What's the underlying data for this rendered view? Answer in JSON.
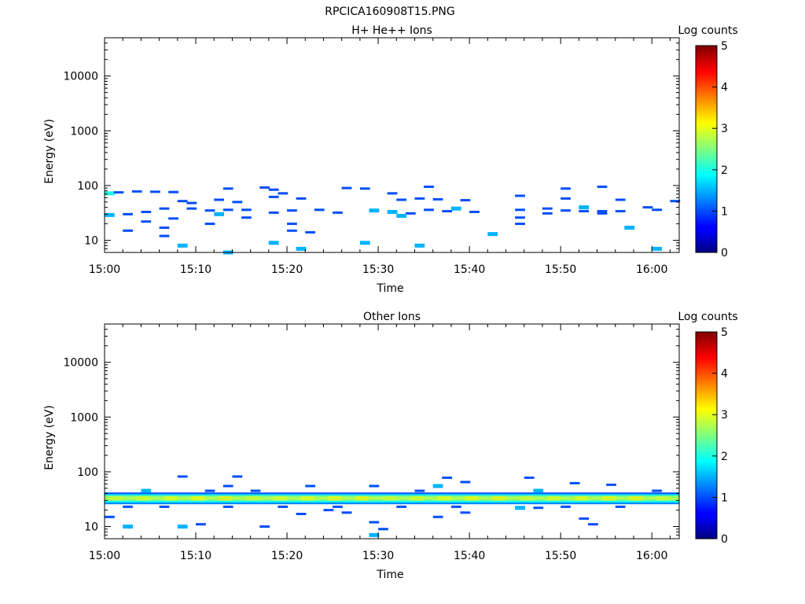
{
  "figure_title": "RPCICA160908T15.PNG",
  "chart_data": [
    {
      "type": "heatmap",
      "title": "H+ He++ Ions",
      "xlabel": "Time",
      "ylabel": "Energy (eV)",
      "x_range": [
        "15:00",
        "16:03"
      ],
      "x_ticks": [
        "15:00",
        "15:10",
        "15:20",
        "15:30",
        "15:40",
        "15:50",
        "16:00"
      ],
      "y_scale": "log",
      "y_range": [
        6,
        50000
      ],
      "y_ticks": [
        "10",
        "100",
        "1000",
        "10000"
      ],
      "colorbar": {
        "label": "Log counts",
        "range": [
          0,
          5
        ],
        "ticks": [
          "0",
          "1",
          "2",
          "3",
          "4",
          "5"
        ],
        "colormap": "jet"
      },
      "cells": [
        [
          "15:00",
          72,
          2
        ],
        [
          "15:01",
          75,
          1
        ],
        [
          "15:03",
          78,
          1
        ],
        [
          "15:05",
          77,
          1
        ],
        [
          "15:07",
          76,
          1
        ],
        [
          "15:13",
          88,
          1
        ],
        [
          "15:17",
          92,
          1
        ],
        [
          "15:18",
          84,
          1
        ],
        [
          "15:19",
          72,
          1
        ],
        [
          "15:26",
          90,
          1
        ],
        [
          "15:28",
          88,
          1
        ],
        [
          "15:31",
          72,
          1
        ],
        [
          "15:35",
          95,
          1
        ],
        [
          "15:45",
          65,
          1
        ],
        [
          "15:50",
          88,
          1
        ],
        [
          "15:54",
          95,
          1
        ],
        [
          "15:08",
          52,
          1
        ],
        [
          "15:09",
          48,
          1
        ],
        [
          "15:12",
          55,
          1
        ],
        [
          "15:14",
          50,
          1
        ],
        [
          "15:18",
          62,
          1
        ],
        [
          "15:21",
          58,
          1
        ],
        [
          "15:32",
          55,
          1
        ],
        [
          "15:34",
          58,
          1
        ],
        [
          "15:36",
          56,
          1
        ],
        [
          "15:39",
          54,
          1
        ],
        [
          "15:50",
          58,
          1
        ],
        [
          "15:56",
          55,
          1
        ],
        [
          "15:00",
          29,
          1.5
        ],
        [
          "15:02",
          30,
          1
        ],
        [
          "15:04",
          33,
          1
        ],
        [
          "15:06",
          38,
          1
        ],
        [
          "15:09",
          38,
          1
        ],
        [
          "15:11",
          35,
          1
        ],
        [
          "15:13",
          36,
          1
        ],
        [
          "15:15",
          36,
          1
        ],
        [
          "15:18",
          32,
          1
        ],
        [
          "15:20",
          35,
          1
        ],
        [
          "15:23",
          36,
          1
        ],
        [
          "15:25",
          32,
          1
        ],
        [
          "15:29",
          35,
          1.5
        ],
        [
          "15:31",
          33,
          1.5
        ],
        [
          "15:33",
          31,
          1
        ],
        [
          "15:35",
          36,
          1
        ],
        [
          "15:37",
          34,
          1
        ],
        [
          "15:38",
          38,
          1.5
        ],
        [
          "15:40",
          33,
          1
        ],
        [
          "15:45",
          36,
          1
        ],
        [
          "15:48",
          38,
          1
        ],
        [
          "15:50",
          35,
          1
        ],
        [
          "15:52",
          40,
          1.5
        ],
        [
          "15:54",
          34,
          1
        ],
        [
          "15:56",
          34,
          1
        ],
        [
          "15:59",
          40,
          1
        ],
        [
          "16:00",
          36,
          1
        ],
        [
          "16:02",
          52,
          1
        ],
        [
          "15:02",
          15,
          1
        ],
        [
          "15:04",
          22,
          1
        ],
        [
          "15:06",
          12,
          1
        ],
        [
          "15:06",
          17,
          1
        ],
        [
          "15:07",
          25,
          1
        ],
        [
          "15:08",
          8,
          1.5
        ],
        [
          "15:11",
          20,
          1
        ],
        [
          "15:12",
          30,
          1.5
        ],
        [
          "15:13",
          6,
          1.5
        ],
        [
          "15:15",
          26,
          1
        ],
        [
          "15:18",
          9,
          1.5
        ],
        [
          "15:20",
          20,
          1
        ],
        [
          "15:20",
          15,
          1
        ],
        [
          "15:21",
          7,
          1.5
        ],
        [
          "15:22",
          14,
          1
        ],
        [
          "15:28",
          9,
          1.5
        ],
        [
          "15:32",
          28,
          1.5
        ],
        [
          "15:34",
          8,
          1.5
        ],
        [
          "15:42",
          13,
          1.5
        ],
        [
          "15:45",
          20,
          1
        ],
        [
          "15:45",
          26,
          1
        ],
        [
          "15:48",
          31,
          1
        ],
        [
          "15:52",
          34,
          1
        ],
        [
          "15:54",
          31,
          1
        ],
        [
          "15:57",
          17,
          1.5
        ],
        [
          "16:00",
          7,
          1.5
        ]
      ]
    },
    {
      "type": "heatmap",
      "title": "Other Ions",
      "xlabel": "Time",
      "ylabel": "Energy (eV)",
      "x_range": [
        "15:00",
        "16:03"
      ],
      "x_ticks": [
        "15:00",
        "15:10",
        "15:20",
        "15:30",
        "15:40",
        "15:50",
        "16:00"
      ],
      "y_scale": "log",
      "y_range": [
        6,
        50000
      ],
      "y_ticks": [
        "10",
        "100",
        "1000",
        "10000"
      ],
      "colorbar": {
        "label": "Log counts",
        "range": [
          0,
          5
        ],
        "ticks": [
          "0",
          "1",
          "2",
          "3",
          "4",
          "5"
        ],
        "colormap": "jet"
      },
      "band": {
        "energy_from": 26,
        "energy_to": 42,
        "profile": [
          [
            26,
            1.0
          ],
          [
            28,
            1.6
          ],
          [
            30,
            2.3
          ],
          [
            32,
            2.7
          ],
          [
            34,
            2.8
          ],
          [
            36,
            2.6
          ],
          [
            38,
            2.0
          ],
          [
            40,
            1.3
          ],
          [
            42,
            0.8
          ]
        ]
      },
      "cells": [
        [
          "15:08",
          82,
          1
        ],
        [
          "15:14",
          82,
          1
        ],
        [
          "15:13",
          55,
          1
        ],
        [
          "15:22",
          55,
          1
        ],
        [
          "15:29",
          55,
          1
        ],
        [
          "15:37",
          78,
          1
        ],
        [
          "15:39",
          65,
          1
        ],
        [
          "15:46",
          78,
          1
        ],
        [
          "15:51",
          62,
          1
        ],
        [
          "15:55",
          58,
          1
        ],
        [
          "15:36",
          55,
          1.5
        ],
        [
          "15:00",
          15,
          1
        ],
        [
          "15:02",
          10,
          1.5
        ],
        [
          "15:08",
          10,
          1.5
        ],
        [
          "15:10",
          11,
          1
        ],
        [
          "15:17",
          10,
          1
        ],
        [
          "15:21",
          17,
          1
        ],
        [
          "15:24",
          20,
          1
        ],
        [
          "15:26",
          18,
          1
        ],
        [
          "15:29",
          12,
          1
        ],
        [
          "15:29",
          7,
          1.5
        ],
        [
          "15:30",
          9,
          1
        ],
        [
          "15:36",
          15,
          1
        ],
        [
          "15:39",
          18,
          1
        ],
        [
          "15:47",
          22,
          1
        ],
        [
          "15:52",
          14,
          1
        ],
        [
          "15:53",
          11,
          1
        ],
        [
          "15:04",
          45,
          1.5
        ],
        [
          "15:11",
          45,
          1
        ],
        [
          "15:16",
          45,
          1
        ],
        [
          "15:34",
          45,
          1
        ],
        [
          "15:47",
          45,
          1.5
        ],
        [
          "16:00",
          45,
          1
        ],
        [
          "15:02",
          23,
          1
        ],
        [
          "15:06",
          23,
          1
        ],
        [
          "15:13",
          23,
          1
        ],
        [
          "15:19",
          23,
          1
        ],
        [
          "15:25",
          23,
          1
        ],
        [
          "15:32",
          23,
          1
        ],
        [
          "15:38",
          23,
          1
        ],
        [
          "15:45",
          22,
          1.5
        ],
        [
          "15:50",
          23,
          1
        ],
        [
          "15:56",
          23,
          1
        ]
      ]
    }
  ]
}
